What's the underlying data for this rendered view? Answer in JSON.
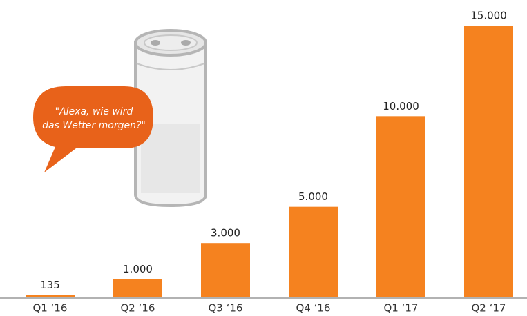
{
  "chart_data": {
    "type": "bar",
    "categories": [
      "Q1 ‘16",
      "Q2 ‘16",
      "Q3 ‘16",
      "Q4 ‘16",
      "Q1 ‘17",
      "Q2 ‘17"
    ],
    "values": [
      135,
      1000,
      3000,
      5000,
      10000,
      15000
    ],
    "value_labels": [
      "135",
      "1.000",
      "3.000",
      "5.000",
      "10.000",
      "15.000"
    ],
    "color": "#f5821f",
    "annotation": [
      "\"Alexa, wie wird",
      "das Wetter morgen?\""
    ]
  }
}
